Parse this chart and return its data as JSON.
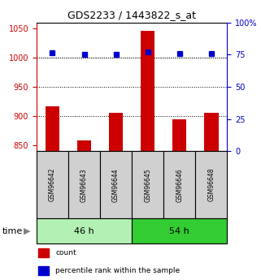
{
  "title": "GDS2233 / 1443822_s_at",
  "categories": [
    "GSM96642",
    "GSM96643",
    "GSM96644",
    "GSM96645",
    "GSM96646",
    "GSM96648"
  ],
  "red_values": [
    916,
    858,
    905,
    1045,
    895,
    905
  ],
  "blue_values": [
    1008,
    1006,
    1006,
    1010,
    1007,
    1007
  ],
  "ylim_left": [
    840,
    1060
  ],
  "ylim_right": [
    0,
    100
  ],
  "yticks_left": [
    850,
    900,
    950,
    1000,
    1050
  ],
  "yticks_right": [
    0,
    25,
    50,
    75,
    100
  ],
  "groups": [
    {
      "label": "46 h",
      "indices": [
        0,
        1,
        2
      ],
      "color": "#b3f0b3"
    },
    {
      "label": "54 h",
      "indices": [
        3,
        4,
        5
      ],
      "color": "#33cc33"
    }
  ],
  "bar_color": "#cc0000",
  "square_color": "#0000cc",
  "bar_bottom": 840,
  "left_axis_color": "#cc0000",
  "right_axis_color": "#0000cc",
  "grid_yticks": [
    900,
    950,
    1000
  ],
  "legend_items": [
    {
      "label": "count",
      "color": "#cc0000"
    },
    {
      "label": "percentile rank within the sample",
      "color": "#0000cc"
    }
  ],
  "time_label": "time",
  "figsize": [
    3.21,
    3.45
  ],
  "dpi": 100
}
